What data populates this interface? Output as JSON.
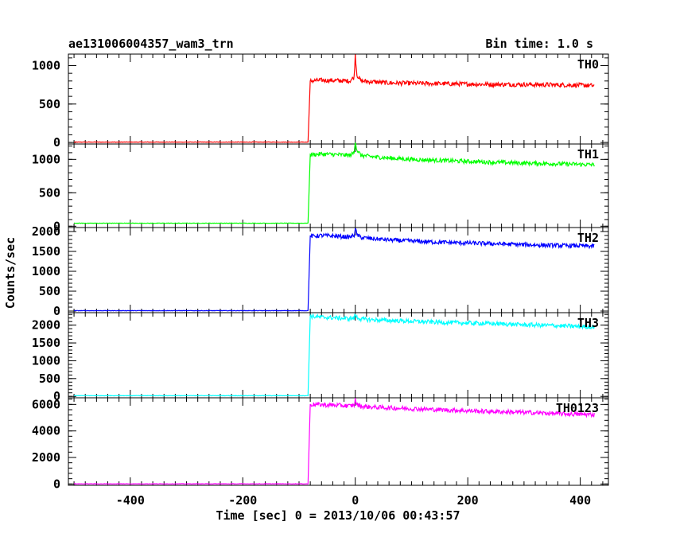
{
  "header": {
    "title": "ae131006004357_wam3_trn",
    "bin_time": "Bin time: 1.0 s"
  },
  "chart_data": {
    "type": "line",
    "title": "ae131006004357_wam3_trn",
    "xlabel": "Time [sec] 0 = 2013/10/06 00:43:57",
    "ylabel": "Counts/sec",
    "xlim": [
      -510,
      450
    ],
    "x_ticks": [
      -400,
      -200,
      0,
      200,
      400
    ],
    "grid": false,
    "legend": "none",
    "panels": [
      {
        "name": "TH0",
        "color": "#ff0000",
        "ylim": [
          -20,
          1150
        ],
        "y_ticks": [
          0,
          500,
          1000
        ],
        "x": [
          -500,
          -90,
          -84,
          -80,
          -60,
          -30,
          -10,
          -2,
          0,
          3,
          10,
          30,
          60,
          100,
          150,
          200,
          250,
          300,
          350,
          400,
          425
        ],
        "y": [
          5,
          5,
          5,
          800,
          810,
          805,
          800,
          850,
          1140,
          880,
          800,
          790,
          775,
          770,
          765,
          760,
          755,
          755,
          750,
          745,
          740
        ]
      },
      {
        "name": "TH1",
        "color": "#00ff00",
        "ylim": [
          -20,
          1230
        ],
        "y_ticks": [
          0,
          500,
          1000
        ],
        "x": [
          -500,
          -90,
          -84,
          -80,
          -60,
          -30,
          -10,
          -2,
          0,
          3,
          10,
          30,
          60,
          100,
          150,
          200,
          250,
          300,
          350,
          400,
          425
        ],
        "y": [
          45,
          45,
          45,
          1070,
          1080,
          1070,
          1060,
          1100,
          1280,
          1140,
          1060,
          1040,
          1020,
          1000,
          985,
          970,
          955,
          945,
          935,
          925,
          920
        ]
      },
      {
        "name": "TH2",
        "color": "#0000ff",
        "ylim": [
          -40,
          2100
        ],
        "y_ticks": [
          0,
          500,
          1000,
          1500,
          2000
        ],
        "x": [
          -500,
          -90,
          -84,
          -80,
          -60,
          -30,
          -10,
          -2,
          0,
          3,
          10,
          30,
          60,
          100,
          150,
          200,
          250,
          300,
          350,
          400,
          425
        ],
        "y": [
          10,
          10,
          10,
          1880,
          1900,
          1880,
          1860,
          1900,
          2080,
          1920,
          1850,
          1820,
          1790,
          1760,
          1730,
          1710,
          1690,
          1670,
          1650,
          1640,
          1630
        ]
      },
      {
        "name": "TH3",
        "color": "#00ffff",
        "ylim": [
          -40,
          2350
        ],
        "y_ticks": [
          0,
          500,
          1000,
          1500,
          2000
        ],
        "x": [
          -500,
          -90,
          -84,
          -80,
          -60,
          -30,
          -10,
          -2,
          0,
          3,
          10,
          30,
          60,
          100,
          150,
          200,
          250,
          300,
          350,
          400,
          425
        ],
        "y": [
          20,
          20,
          20,
          2250,
          2220,
          2200,
          2180,
          2200,
          2300,
          2220,
          2170,
          2150,
          2130,
          2110,
          2080,
          2060,
          2040,
          2010,
          1990,
          1960,
          1950
        ]
      },
      {
        "name": "TH0123",
        "color": "#ff00ff",
        "ylim": [
          -100,
          6500
        ],
        "y_ticks": [
          0,
          2000,
          4000,
          6000
        ],
        "x": [
          -500,
          -90,
          -84,
          -80,
          -60,
          -30,
          -10,
          -2,
          0,
          3,
          10,
          30,
          60,
          100,
          150,
          200,
          250,
          300,
          350,
          400,
          425
        ],
        "y": [
          10,
          10,
          10,
          6000,
          5980,
          5930,
          5880,
          5950,
          6350,
          6000,
          5850,
          5800,
          5740,
          5680,
          5600,
          5520,
          5460,
          5400,
          5320,
          5250,
          5230
        ]
      }
    ]
  }
}
